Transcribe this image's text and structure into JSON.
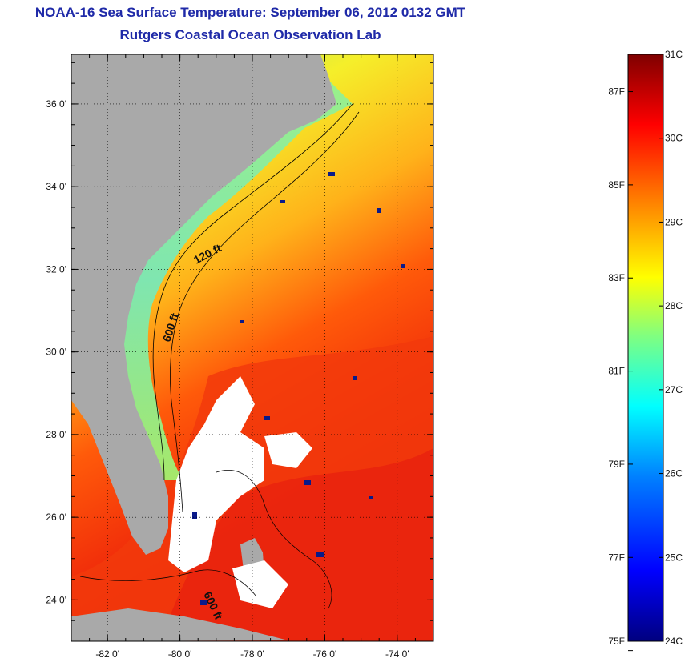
{
  "title": "NOAA-16 Sea Surface Temperature:  September 06, 2012 0132 GMT",
  "subtitle": "Rutgers Coastal Ocean Observation Lab",
  "map": {
    "lon_range": [
      -83.0,
      -73.0
    ],
    "lat_range": [
      23.0,
      37.2
    ],
    "lat_ticks": [
      {
        "value": 24,
        "label": "24 0'"
      },
      {
        "value": 26,
        "label": "26 0'"
      },
      {
        "value": 28,
        "label": "28 0'"
      },
      {
        "value": 30,
        "label": "30 0'"
      },
      {
        "value": 32,
        "label": "32 0'"
      },
      {
        "value": 34,
        "label": "34 0'"
      },
      {
        "value": 36,
        "label": "36 0'"
      }
    ],
    "lon_ticks": [
      {
        "value": -82,
        "label": "-82 0'"
      },
      {
        "value": -80,
        "label": "-80 0'"
      },
      {
        "value": -78,
        "label": "-78 0'"
      },
      {
        "value": -76,
        "label": "-76 0'"
      },
      {
        "value": -74,
        "label": "-74 0'"
      }
    ],
    "contour_labels": [
      {
        "text": "120 ft"
      },
      {
        "text": "600 ft"
      },
      {
        "text": "600 ft"
      }
    ],
    "land_color": "#a9a9a9",
    "no_data_color": "#ffffff"
  },
  "colorbar": {
    "min_c": 24,
    "max_c": 31,
    "celsius_labels": [
      "31C",
      "30C",
      "29C",
      "28C",
      "27C",
      "26C",
      "25C",
      "24C"
    ],
    "celsius_values": [
      31,
      30,
      29,
      28,
      27,
      26,
      25,
      24
    ],
    "fahrenheit_labels": [
      "87F",
      "85F",
      "83F",
      "81F",
      "79F",
      "77F",
      "75F"
    ],
    "fahrenheit_values": [
      87,
      85,
      83,
      81,
      79,
      77,
      75
    ],
    "colors": [
      "#00007f",
      "#0000ff",
      "#0080ff",
      "#00ffff",
      "#80ff80",
      "#ffff00",
      "#ff8000",
      "#ff0000",
      "#7f0000"
    ]
  }
}
